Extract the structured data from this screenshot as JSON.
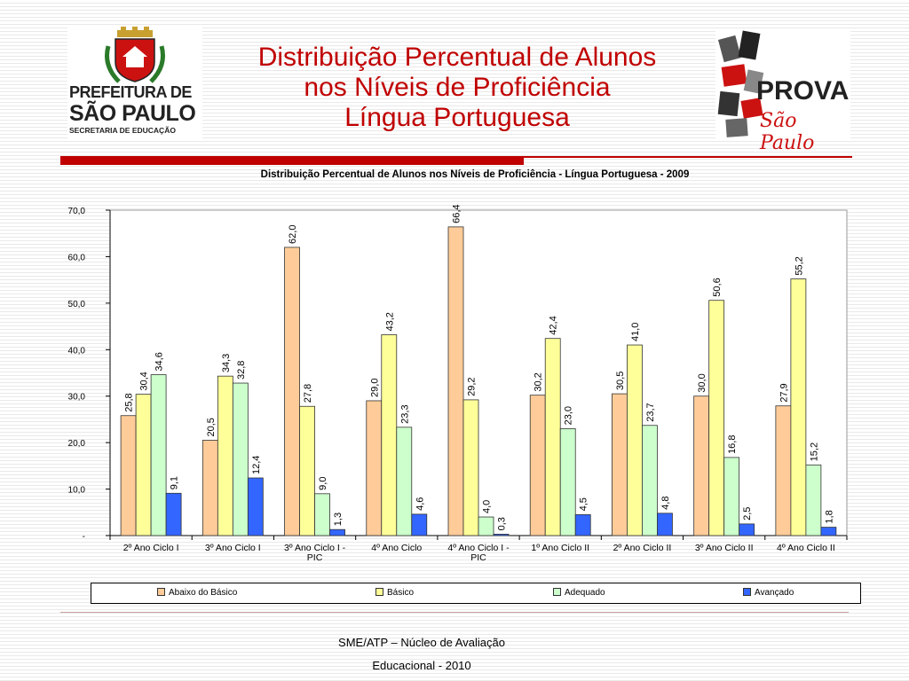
{
  "slide": {
    "title_lines": [
      "Distribuição Percentual de Alunos",
      "nos Níveis de Proficiência",
      "Língua Portuguesa"
    ],
    "footer_lines": [
      "SME/ATP – Núcleo de Avaliação",
      "Educacional - 2010"
    ]
  },
  "logos": {
    "left": {
      "lines": [
        "PREFEITURA DE",
        "SÃO PAULO",
        "SECRETARIA DE EDUCAÇÃO"
      ]
    },
    "right": {
      "lines": [
        "PROVA",
        "São Paulo"
      ]
    }
  },
  "colors": {
    "accent": "#c00000"
  },
  "chart_data": {
    "type": "bar",
    "title": "Distribuição Percentual de Alunos nos Níveis de Proficiência - Língua Portuguesa - 2009",
    "categories": [
      "2º Ano Ciclo I",
      "3º Ano Ciclo I",
      "3º Ano Ciclo I - PIC",
      "4º Ano Ciclo",
      "4º Ano Ciclo I - PIC",
      "1º Ano Ciclo II",
      "2º Ano Ciclo II",
      "3º Ano Ciclo II",
      "4º Ano Ciclo II"
    ],
    "series": [
      {
        "name": "Abaixo do Básico",
        "color": "#ffcc99",
        "values": [
          25.8,
          20.5,
          62.0,
          29.0,
          66.4,
          30.2,
          30.5,
          30.0,
          27.9
        ],
        "labels": [
          "25,8",
          "20,5",
          "62,0",
          "29,0",
          "66,4",
          "30,2",
          "30,5",
          "30,0",
          "27,9"
        ]
      },
      {
        "name": "Básico",
        "color": "#ffff99",
        "values": [
          30.4,
          34.3,
          27.8,
          43.2,
          29.2,
          42.4,
          41.0,
          50.6,
          55.2
        ],
        "labels": [
          "30,4",
          "34,3",
          "27,8",
          "43,2",
          "29,2",
          "42,4",
          "41,0",
          "50,6",
          "55,2"
        ]
      },
      {
        "name": "Adequado",
        "color": "#ccffcc",
        "values": [
          34.6,
          32.8,
          9.0,
          23.3,
          4.0,
          23.0,
          23.7,
          16.8,
          15.2
        ],
        "labels": [
          "34,6",
          "32,8",
          "9,0",
          "23,3",
          "4,0",
          "23,0",
          "23,7",
          "16,8",
          "15,2"
        ]
      },
      {
        "name": "Avançado",
        "color": "#3366ff",
        "values": [
          9.1,
          12.4,
          1.3,
          4.6,
          0.3,
          4.5,
          4.8,
          2.5,
          1.8
        ],
        "labels": [
          "9,1",
          "12,4",
          "1,3",
          "4,6",
          "0,3",
          "4,5",
          "4,8",
          "2,5",
          "1,8"
        ]
      }
    ],
    "ylim": [
      0,
      70
    ],
    "yticks": [
      0,
      10,
      20,
      30,
      40,
      50,
      60,
      70
    ],
    "ytick_labels": [
      "-",
      "10,0",
      "20,0",
      "30,0",
      "40,0",
      "50,0",
      "60,0",
      "70,0"
    ],
    "grid": false,
    "legend_position": "bottom"
  }
}
